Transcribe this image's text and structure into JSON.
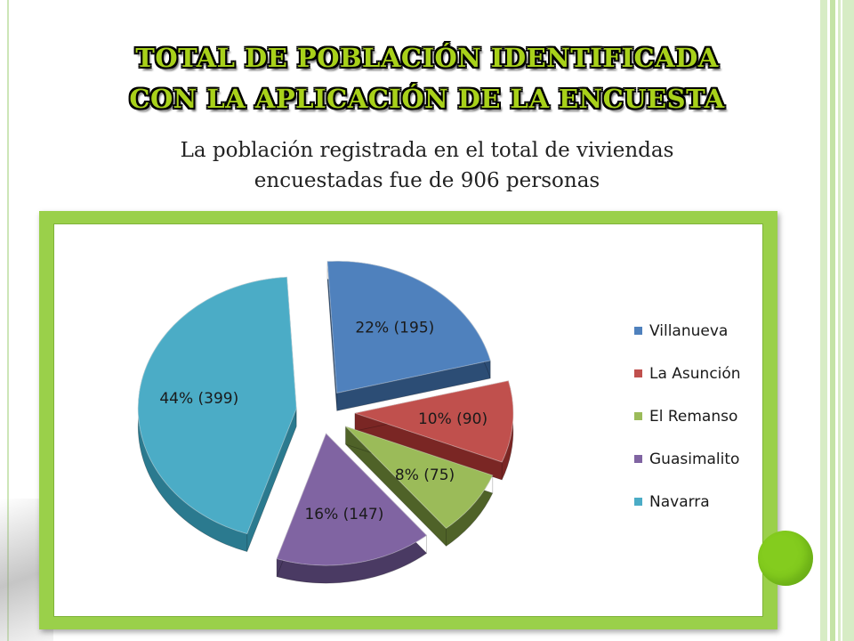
{
  "slide": {
    "title_lines": [
      "Total de población identificada",
      "con la aplicación de la encuesta"
    ],
    "subtitle_lines": [
      "La población registrada en el total de viviendas",
      "encuestadas fue de 906 personas"
    ]
  },
  "colors": {
    "title_fill": "#a8d11a",
    "chart_frame": "#9ad04a",
    "accent_dot": "#84cc1e"
  },
  "chart_data": {
    "type": "pie",
    "style": "3d-exploded",
    "title": "",
    "legend_position": "right",
    "series": [
      {
        "name": "",
        "slices": [
          {
            "category": "Villanueva",
            "percent": 22,
            "value": 195,
            "label": "22% (195)",
            "color": "#4f81bd",
            "side": "#2c4d75"
          },
          {
            "category": "La Asunción",
            "percent": 10,
            "value": 90,
            "label": "10% (90)",
            "color": "#c0504d",
            "side": "#7a2624"
          },
          {
            "category": "El Remanso",
            "percent": 8,
            "value": 75,
            "label": "8% (75)",
            "color": "#9bbb59",
            "side": "#4f6228"
          },
          {
            "category": "Guasimalito",
            "percent": 16,
            "value": 147,
            "label": "16% (147)",
            "color": "#8064a2",
            "side": "#4a3a63"
          },
          {
            "category": "Navarra",
            "percent": 44,
            "value": 399,
            "label": "44% (399)",
            "color": "#4bacc6",
            "side": "#2b7a8f"
          }
        ]
      }
    ]
  }
}
